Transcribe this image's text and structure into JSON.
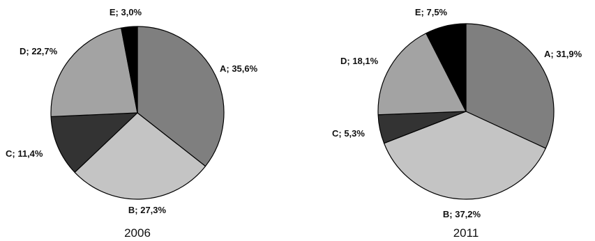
{
  "chart_data": [
    {
      "type": "pie",
      "caption": "2006",
      "slices": [
        {
          "label": "A; 35,6%",
          "name": "A",
          "value": 35.6,
          "color": "#7f7f7f"
        },
        {
          "label": "B; 27,3%",
          "name": "B",
          "value": 27.3,
          "color": "#c4c4c4"
        },
        {
          "label": "C; 11,4%",
          "name": "C",
          "value": 11.4,
          "color": "#333333"
        },
        {
          "label": "D; 22,7%",
          "name": "D",
          "value": 22.7,
          "color": "#a3a3a3"
        },
        {
          "label": "E; 3,0%",
          "name": "E",
          "value": 3.0,
          "color": "#000000"
        }
      ]
    },
    {
      "type": "pie",
      "caption": "2011",
      "slices": [
        {
          "label": "A; 31,9%",
          "name": "A",
          "value": 31.9,
          "color": "#7f7f7f"
        },
        {
          "label": "B; 37,2%",
          "name": "B",
          "value": 37.2,
          "color": "#c4c4c4"
        },
        {
          "label": "C; 5,3%",
          "name": "C",
          "value": 5.3,
          "color": "#333333"
        },
        {
          "label": "D; 18,1%",
          "name": "D",
          "value": 18.1,
          "color": "#a3a3a3"
        },
        {
          "label": "E; 7,5%",
          "name": "E",
          "value": 7.5,
          "color": "#000000"
        }
      ]
    }
  ]
}
